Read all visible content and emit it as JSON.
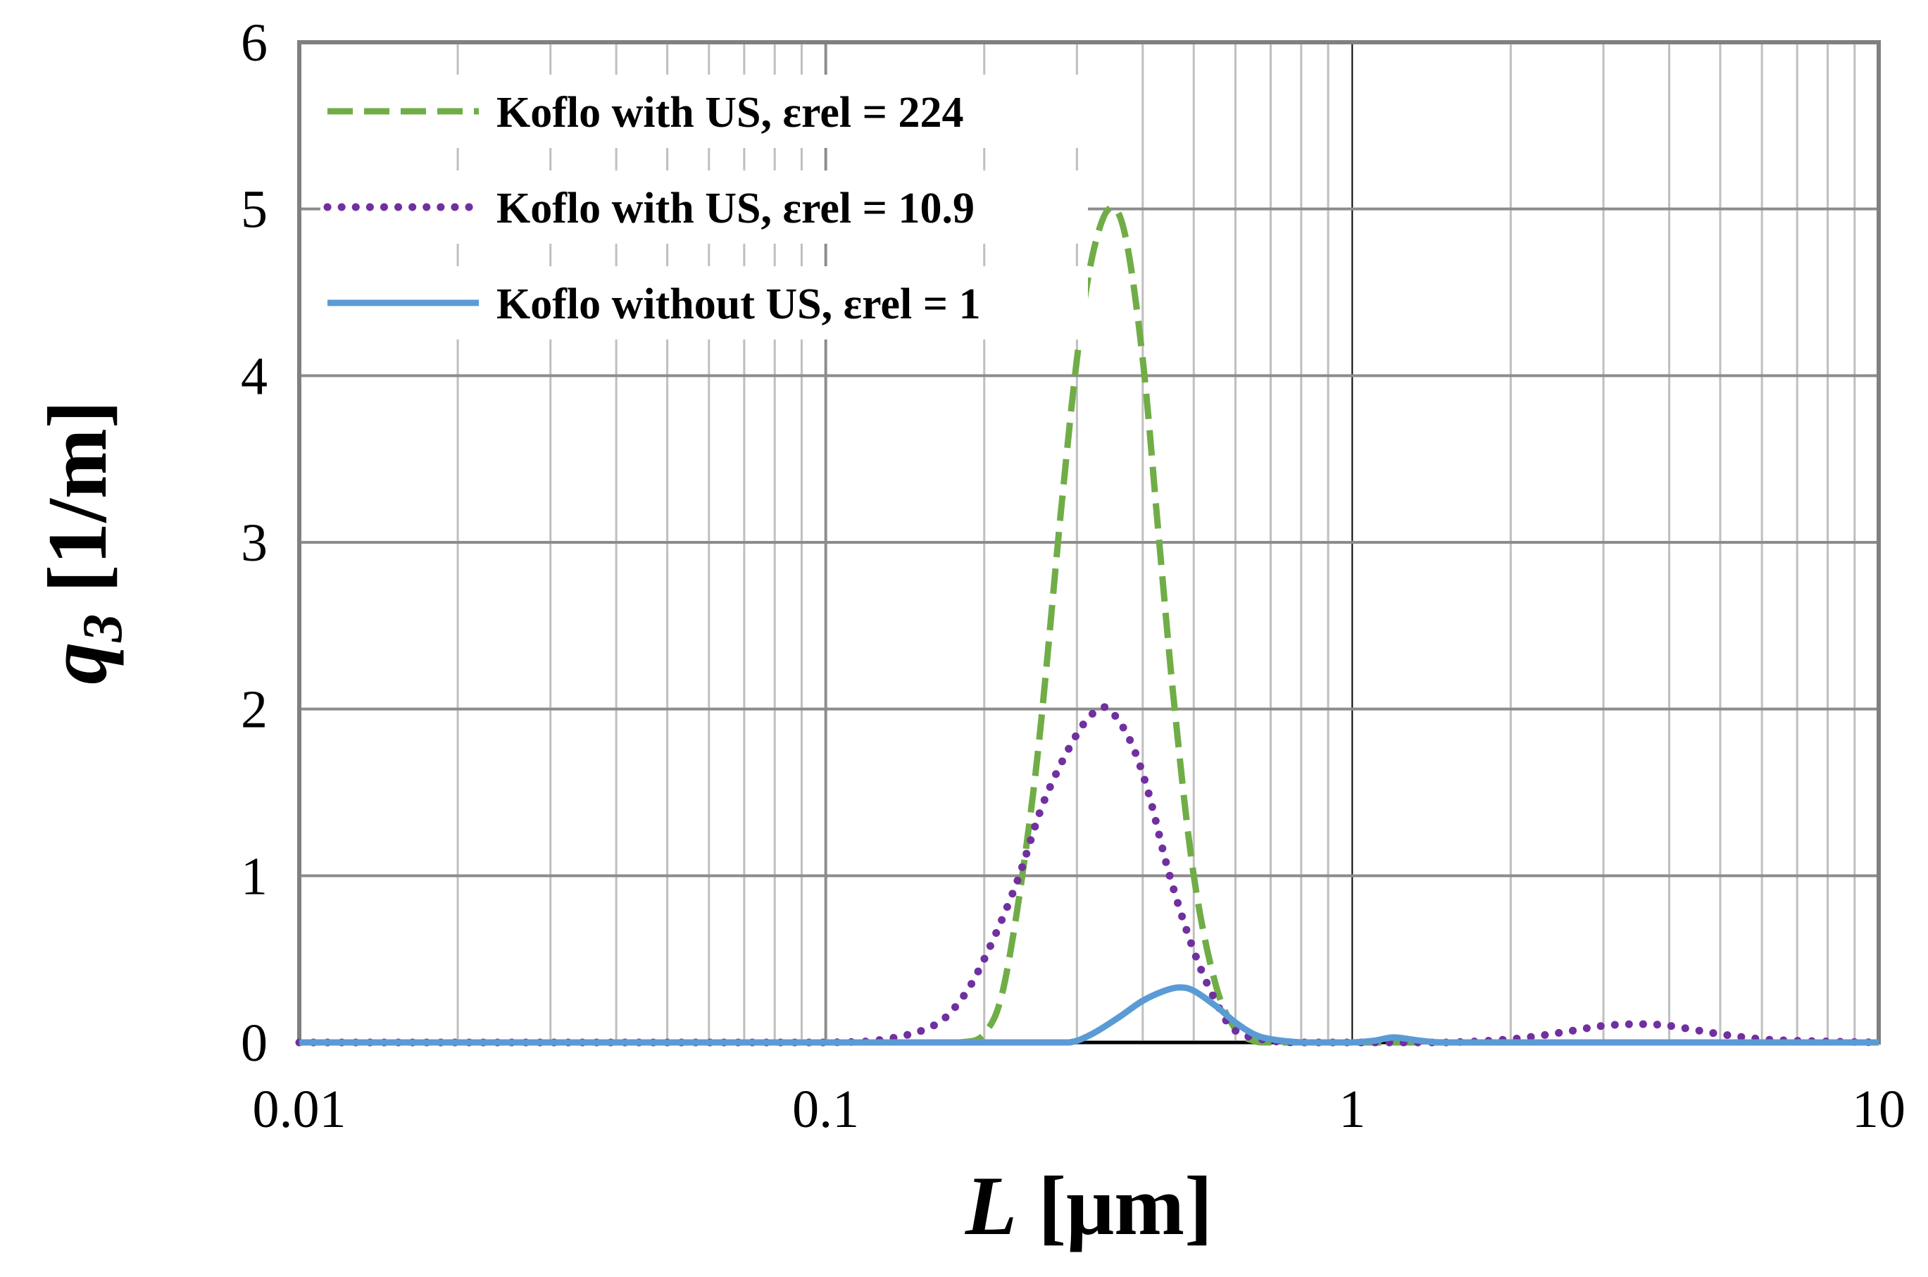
{
  "chart_data": {
    "type": "line",
    "title": "",
    "xlabel": {
      "var": "L",
      "unit": "[μm]"
    },
    "ylabel": {
      "var": "q",
      "sub": "3",
      "unit": "[1/m]"
    },
    "xscale": "log",
    "xlim": [
      0.01,
      10
    ],
    "ylim": [
      0,
      6
    ],
    "grid": true,
    "x_ticks": [
      {
        "value": 0.01,
        "label": "0.01"
      },
      {
        "value": 0.1,
        "label": "0.1"
      },
      {
        "value": 1,
        "label": "1"
      },
      {
        "value": 10,
        "label": "10"
      }
    ],
    "y_ticks": [
      {
        "value": 0,
        "label": "0"
      },
      {
        "value": 1,
        "label": "1"
      },
      {
        "value": 2,
        "label": "2"
      },
      {
        "value": 3,
        "label": "3"
      },
      {
        "value": 4,
        "label": "4"
      },
      {
        "value": 5,
        "label": "5"
      },
      {
        "value": 6,
        "label": "6"
      }
    ],
    "legend_position": "top-left",
    "series": [
      {
        "name": "Koflo with US, εrel = 224",
        "style": "dashed",
        "color": "#70ad47",
        "x": [
          0.01,
          0.05,
          0.1,
          0.15,
          0.18,
          0.2,
          0.22,
          0.25,
          0.28,
          0.3,
          0.32,
          0.345,
          0.37,
          0.4,
          0.43,
          0.46,
          0.5,
          0.55,
          0.6,
          0.65,
          0.7,
          1,
          10
        ],
        "y": [
          0,
          0,
          0,
          0,
          0,
          0.05,
          0.4,
          1.6,
          3.2,
          4.1,
          4.7,
          5.0,
          4.85,
          4.1,
          3.0,
          2.0,
          1.0,
          0.35,
          0.08,
          0.01,
          0,
          0,
          0
        ]
      },
      {
        "name": "Koflo with US, εrel = 10.9",
        "style": "dotted",
        "color": "#7030a0",
        "x": [
          0.01,
          0.05,
          0.1,
          0.13,
          0.16,
          0.18,
          0.2,
          0.23,
          0.26,
          0.3,
          0.33,
          0.35,
          0.38,
          0.41,
          0.45,
          0.5,
          0.55,
          0.6,
          0.7,
          0.8,
          1,
          1.5,
          2,
          2.5,
          3,
          3.5,
          4,
          5,
          6,
          7,
          10
        ],
        "y": [
          0,
          0,
          0,
          0.02,
          0.1,
          0.25,
          0.5,
          0.95,
          1.45,
          1.85,
          2.0,
          1.98,
          1.8,
          1.5,
          1.0,
          0.55,
          0.25,
          0.07,
          0.01,
          0,
          0,
          0,
          0.02,
          0.06,
          0.1,
          0.11,
          0.1,
          0.05,
          0.02,
          0.01,
          0
        ]
      },
      {
        "name": "Koflo without US, εrel = 1",
        "style": "solid",
        "color": "#5b9bd5",
        "x": [
          0.01,
          0.1,
          0.25,
          0.29,
          0.32,
          0.36,
          0.4,
          0.44,
          0.47,
          0.5,
          0.55,
          0.6,
          0.65,
          0.7,
          0.8,
          0.9,
          1,
          1.1,
          1.2,
          1.35,
          1.5,
          2,
          10
        ],
        "y": [
          0,
          0,
          0,
          0,
          0.05,
          0.15,
          0.25,
          0.31,
          0.33,
          0.31,
          0.22,
          0.12,
          0.05,
          0.02,
          0,
          0,
          0,
          0.01,
          0.03,
          0.01,
          0,
          0,
          0
        ]
      }
    ]
  }
}
